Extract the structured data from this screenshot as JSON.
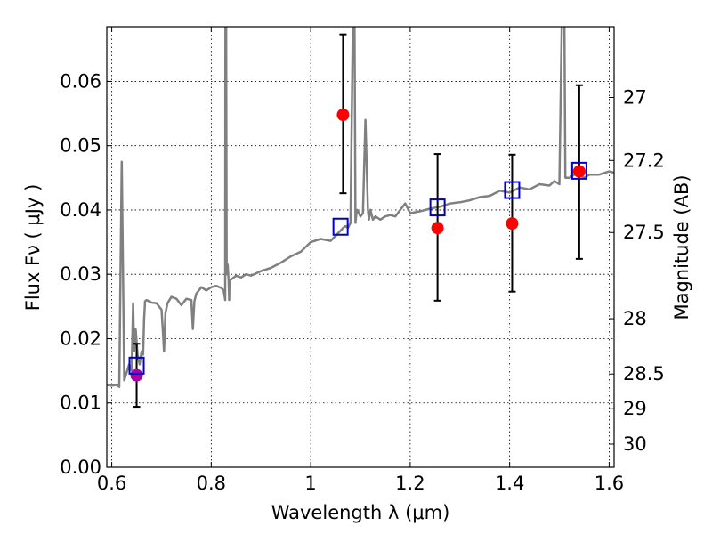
{
  "chart_data": {
    "type": "scatter",
    "title": "",
    "xlabel": "Wavelength  λ (μm)",
    "ylabel": "Flux  Fν  ( μJy )",
    "ylabel_right": "Magnitude (AB)",
    "xlim": [
      0.59,
      1.61
    ],
    "ylim": [
      0.0,
      0.0685
    ],
    "grid": true,
    "grid_style": "dotted",
    "x_ticks": [
      0.6,
      0.8,
      1.0,
      1.2,
      1.4,
      1.6
    ],
    "x_tick_labels": [
      "0.6",
      "0.8",
      "1",
      "1.2",
      "1.4",
      "1.6"
    ],
    "y_ticks": [
      0.0,
      0.01,
      0.02,
      0.03,
      0.04,
      0.05,
      0.06
    ],
    "y_tick_labels": [
      "0.00",
      "0.01",
      "0.02",
      "0.03",
      "0.04",
      "0.05",
      "0.06"
    ],
    "right_axis": {
      "labels": [
        "27",
        "27.2",
        "27.5",
        "28",
        "28.5",
        "29",
        "30"
      ],
      "at_flux": [
        0.0575,
        0.0477,
        0.0365,
        0.0231,
        0.0145,
        0.0091,
        0.0036
      ]
    },
    "colors": {
      "model": "#808080",
      "observed": "#ff0000",
      "observed_first": "#aa00aa",
      "model_photometry": "#0000cc",
      "errorbar": "#000000"
    },
    "series": [
      {
        "kind": "observed",
        "x": [
          0.65,
          1.065,
          1.255,
          1.405,
          1.54
        ],
        "y": [
          0.0143,
          0.0548,
          0.0372,
          0.0379,
          0.046
        ],
        "yerr_low": [
          0.0049,
          0.0122,
          0.0113,
          0.0106,
          0.0136
        ],
        "yerr_high": [
          0.0049,
          0.0125,
          0.0115,
          0.0107,
          0.0134
        ],
        "point_colors": [
          "#aa00aa",
          "#ff0000",
          "#ff0000",
          "#ff0000",
          "#ff0000"
        ]
      },
      {
        "kind": "model_photometry",
        "x": [
          0.65,
          1.06,
          1.255,
          1.405,
          1.54
        ],
        "y": [
          0.0158,
          0.0374,
          0.0404,
          0.0431,
          0.0461
        ]
      },
      {
        "kind": "model_spectrum",
        "x": [
          0.59,
          0.6,
          0.61,
          0.615,
          0.62,
          0.625,
          0.63,
          0.635,
          0.64,
          0.643,
          0.645,
          0.648,
          0.652,
          0.656,
          0.66,
          0.663,
          0.665,
          0.667,
          0.67,
          0.675,
          0.68,
          0.69,
          0.7,
          0.703,
          0.705,
          0.708,
          0.712,
          0.72,
          0.73,
          0.74,
          0.75,
          0.76,
          0.763,
          0.766,
          0.77,
          0.78,
          0.79,
          0.8,
          0.81,
          0.82,
          0.825,
          0.828,
          0.8285,
          0.83,
          0.831,
          0.833,
          0.835,
          0.836,
          0.8365,
          0.84,
          0.85,
          0.86,
          0.87,
          0.88,
          0.9,
          0.92,
          0.94,
          0.96,
          0.98,
          1.0,
          1.02,
          1.04,
          1.05,
          1.06,
          1.065,
          1.07,
          1.075,
          1.08,
          1.085,
          1.088,
          1.09,
          1.092,
          1.094,
          1.1,
          1.105,
          1.11,
          1.115,
          1.117,
          1.12,
          1.125,
          1.13,
          1.14,
          1.15,
          1.16,
          1.17,
          1.18,
          1.19,
          1.2,
          1.22,
          1.24,
          1.26,
          1.28,
          1.3,
          1.32,
          1.34,
          1.36,
          1.38,
          1.4,
          1.42,
          1.44,
          1.46,
          1.48,
          1.49,
          1.5,
          1.505,
          1.51,
          1.512,
          1.515,
          1.52,
          1.53,
          1.54,
          1.55,
          1.56,
          1.58,
          1.6,
          1.61
        ],
        "y": [
          0.0128,
          0.0127,
          0.0128,
          0.0125,
          0.0475,
          0.0135,
          0.0148,
          0.016,
          0.015,
          0.0255,
          0.018,
          0.0215,
          0.0175,
          0.016,
          0.018,
          0.0175,
          0.023,
          0.0258,
          0.026,
          0.0258,
          0.0256,
          0.0255,
          0.0245,
          0.021,
          0.018,
          0.024,
          0.0255,
          0.0265,
          0.0262,
          0.0252,
          0.0262,
          0.026,
          0.0215,
          0.0258,
          0.027,
          0.028,
          0.0275,
          0.028,
          0.0282,
          0.0279,
          0.0275,
          0.026,
          0.07,
          0.07,
          0.03,
          0.0315,
          0.029,
          0.026,
          0.029,
          0.0292,
          0.0298,
          0.0295,
          0.03,
          0.0298,
          0.0305,
          0.031,
          0.0318,
          0.0328,
          0.0335,
          0.035,
          0.0355,
          0.0352,
          0.036,
          0.0368,
          0.0372,
          0.0375,
          0.0372,
          0.038,
          0.07,
          0.07,
          0.038,
          0.0395,
          0.04,
          0.039,
          0.0395,
          0.054,
          0.04,
          0.0385,
          0.04,
          0.0385,
          0.039,
          0.0385,
          0.039,
          0.0392,
          0.039,
          0.04,
          0.041,
          0.0395,
          0.0398,
          0.0402,
          0.0405,
          0.041,
          0.0412,
          0.0415,
          0.042,
          0.0422,
          0.043,
          0.0427,
          0.0435,
          0.0432,
          0.044,
          0.0438,
          0.0445,
          0.044,
          0.07,
          0.07,
          0.045,
          0.045,
          0.045,
          0.0455,
          0.0455,
          0.045,
          0.0455,
          0.0455,
          0.046,
          0.0458
        ]
      }
    ]
  }
}
